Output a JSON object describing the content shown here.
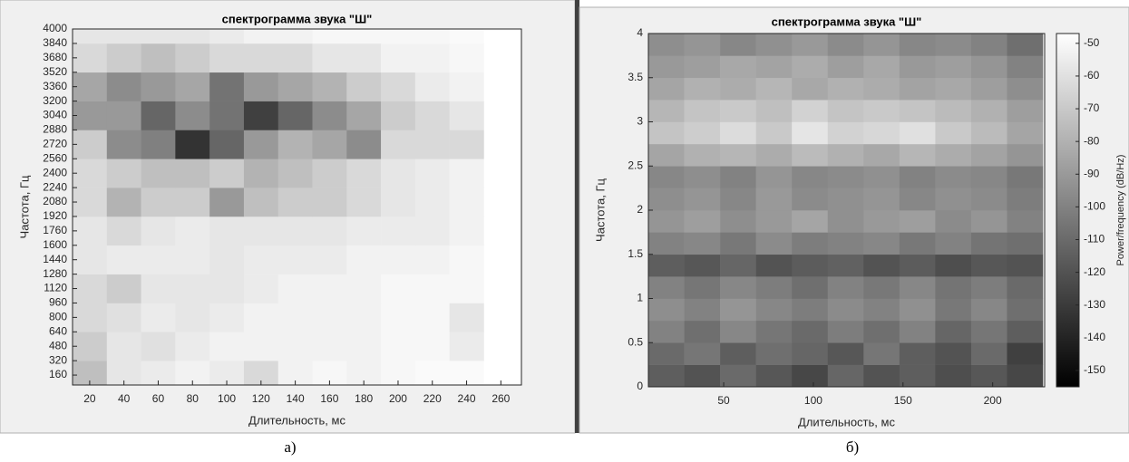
{
  "chart_data": [
    {
      "type": "heatmap",
      "title": "спектрограмма звука \"Ш\"",
      "x_label": "Длительность, мс",
      "y_label": "Частота, Гц",
      "caption": "а)",
      "colormap": "gray_r",
      "zlim": [
        0,
        100
      ],
      "xlim": [
        10,
        272
      ],
      "ylim": [
        50,
        4000
      ],
      "xticks": [
        20,
        40,
        60,
        80,
        100,
        120,
        140,
        160,
        180,
        200,
        220,
        240,
        260
      ],
      "yticks": [
        160,
        320,
        480,
        640,
        800,
        960,
        1120,
        1280,
        1440,
        1600,
        1760,
        1920,
        2080,
        2240,
        2400,
        2560,
        2720,
        2880,
        3040,
        3200,
        3360,
        3520,
        3680,
        3840,
        4000
      ],
      "xbins": [
        10,
        30,
        50,
        70,
        90,
        110,
        130,
        150,
        170,
        190,
        210,
        230,
        250
      ],
      "ybins": [
        50,
        320,
        640,
        960,
        1280,
        1600,
        1920,
        2240,
        2560,
        2880,
        3200,
        3520,
        3840,
        4000
      ],
      "z": [
        [
          25,
          10,
          8,
          5,
          8,
          15,
          5,
          3,
          5,
          3,
          2,
          2
        ],
        [
          20,
          10,
          12,
          8,
          5,
          5,
          5,
          5,
          5,
          3,
          3,
          8
        ],
        [
          15,
          12,
          8,
          10,
          8,
          5,
          5,
          5,
          5,
          3,
          3,
          10
        ],
        [
          15,
          20,
          10,
          10,
          10,
          8,
          5,
          5,
          5,
          3,
          3,
          3
        ],
        [
          10,
          8,
          8,
          8,
          10,
          8,
          8,
          8,
          5,
          5,
          5,
          3
        ],
        [
          10,
          15,
          10,
          8,
          10,
          10,
          10,
          10,
          8,
          8,
          8,
          5
        ],
        [
          15,
          30,
          20,
          20,
          40,
          25,
          20,
          20,
          15,
          10,
          8,
          5
        ],
        [
          15,
          20,
          25,
          25,
          20,
          30,
          25,
          20,
          15,
          10,
          8,
          5
        ],
        [
          20,
          45,
          50,
          80,
          60,
          40,
          30,
          35,
          45,
          15,
          15,
          15
        ],
        [
          40,
          40,
          60,
          45,
          55,
          75,
          60,
          45,
          35,
          20,
          15,
          10
        ],
        [
          35,
          45,
          40,
          35,
          55,
          40,
          35,
          30,
          20,
          15,
          8,
          5
        ],
        [
          15,
          20,
          25,
          20,
          15,
          15,
          15,
          10,
          10,
          5,
          5,
          3
        ],
        [
          10,
          10,
          10,
          10,
          8,
          5,
          5,
          3,
          3,
          3,
          3,
          2
        ]
      ]
    },
    {
      "type": "heatmap",
      "title": "спектрограмма звука \"Ш\"",
      "x_label": "Длительность, мс",
      "y_label": "Частота, Гц",
      "caption": "б)",
      "colormap": "gray",
      "zlim": [
        -155,
        -47
      ],
      "colorbar_label": "Power/frequency (dB/Hz)",
      "cticks": [
        -50,
        -60,
        -70,
        -80,
        -90,
        -100,
        -110,
        -120,
        -130,
        -140,
        -150
      ],
      "xlim": [
        8,
        229
      ],
      "ylim": [
        0,
        4
      ],
      "xticks": [
        50,
        100,
        150,
        200
      ],
      "yticks": [
        0,
        0.5,
        1,
        1.5,
        2,
        2.5,
        3,
        3.5,
        4
      ],
      "xbins": [
        8,
        28,
        48,
        68,
        88,
        108,
        128,
        148,
        168,
        188,
        208,
        228
      ],
      "ybins": [
        0,
        0.25,
        0.5,
        0.75,
        1,
        1.25,
        1.5,
        1.75,
        2,
        2.25,
        2.5,
        2.75,
        3,
        3.25,
        3.5,
        3.75,
        4
      ],
      "z": [
        [
          -115,
          -120,
          -110,
          -118,
          -125,
          -112,
          -120,
          -115,
          -122,
          -118,
          -125
        ],
        [
          -110,
          -105,
          -115,
          -108,
          -112,
          -118,
          -105,
          -115,
          -120,
          -110,
          -128
        ],
        [
          -100,
          -108,
          -98,
          -105,
          -110,
          -102,
          -108,
          -100,
          -112,
          -105,
          -115
        ],
        [
          -95,
          -100,
          -92,
          -98,
          -102,
          -96,
          -100,
          -94,
          -104,
          -98,
          -108
        ],
        [
          -100,
          -105,
          -98,
          -102,
          -108,
          -100,
          -104,
          -98,
          -106,
          -102,
          -110
        ],
        [
          -115,
          -118,
          -112,
          -120,
          -116,
          -114,
          -120,
          -116,
          -122,
          -118,
          -120
        ],
        [
          -100,
          -98,
          -104,
          -96,
          -102,
          -100,
          -98,
          -104,
          -100,
          -106,
          -108
        ],
        [
          -92,
          -88,
          -95,
          -90,
          -85,
          -94,
          -90,
          -88,
          -96,
          -92,
          -100
        ],
        [
          -95,
          -92,
          -98,
          -90,
          -96,
          -94,
          -92,
          -98,
          -94,
          -96,
          -102
        ],
        [
          -98,
          -95,
          -100,
          -92,
          -98,
          -96,
          -94,
          -100,
          -96,
          -98,
          -104
        ],
        [
          -85,
          -80,
          -78,
          -82,
          -76,
          -80,
          -84,
          -78,
          -82,
          -86,
          -92
        ],
        [
          -72,
          -68,
          -62,
          -70,
          -58,
          -66,
          -64,
          -60,
          -70,
          -76,
          -85
        ],
        [
          -78,
          -72,
          -70,
          -74,
          -66,
          -72,
          -70,
          -72,
          -76,
          -80,
          -88
        ],
        [
          -85,
          -80,
          -82,
          -78,
          -84,
          -80,
          -82,
          -86,
          -84,
          -88,
          -95
        ],
        [
          -90,
          -88,
          -84,
          -86,
          -82,
          -88,
          -84,
          -90,
          -88,
          -92,
          -100
        ],
        [
          -95,
          -92,
          -98,
          -94,
          -90,
          -96,
          -92,
          -98,
          -96,
          -100,
          -108
        ]
      ]
    }
  ]
}
